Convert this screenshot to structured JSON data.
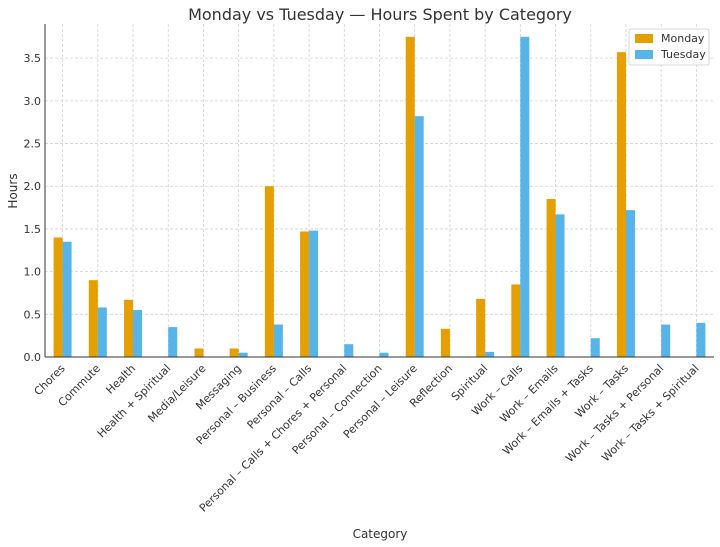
{
  "chart_data": {
    "type": "bar",
    "title": "Monday vs Tuesday — Hours Spent by Category",
    "xlabel": "Category",
    "ylabel": "Hours",
    "ylim": [
      0,
      3.9
    ],
    "yticks": [
      "0.0",
      "0.5",
      "1.0",
      "1.5",
      "2.0",
      "2.5",
      "3.0",
      "3.5"
    ],
    "grid": true,
    "legend_position": "top-right",
    "categories": [
      "Chores",
      "Commute",
      "Health",
      "Health + Spiritual",
      "Media/Leisure",
      "Messaging",
      "Personal – Business",
      "Personal – Calls",
      "Personal – Calls + Chores + Personal",
      "Personal – Connection",
      "Personal – Leisure",
      "Reflection",
      "Spiritual",
      "Work – Calls",
      "Work – Emails",
      "Work – Emails + Tasks",
      "Work – Tasks",
      "Work – Tasks + Personal",
      "Work – Tasks + Spiritual"
    ],
    "series": [
      {
        "name": "Monday",
        "color": "#E69F00",
        "values": [
          1.4,
          0.9,
          0.67,
          0,
          0.1,
          0.1,
          2.0,
          1.47,
          0,
          0,
          3.75,
          0.33,
          0.68,
          0.85,
          1.85,
          0,
          3.57,
          0,
          0
        ]
      },
      {
        "name": "Tuesday",
        "color": "#56B4E9",
        "values": [
          1.35,
          0.58,
          0.55,
          0.35,
          0,
          0.05,
          0.38,
          1.48,
          0.15,
          0.05,
          2.82,
          0,
          0.06,
          3.75,
          1.67,
          0.22,
          1.72,
          0.38,
          0.4
        ]
      }
    ]
  }
}
